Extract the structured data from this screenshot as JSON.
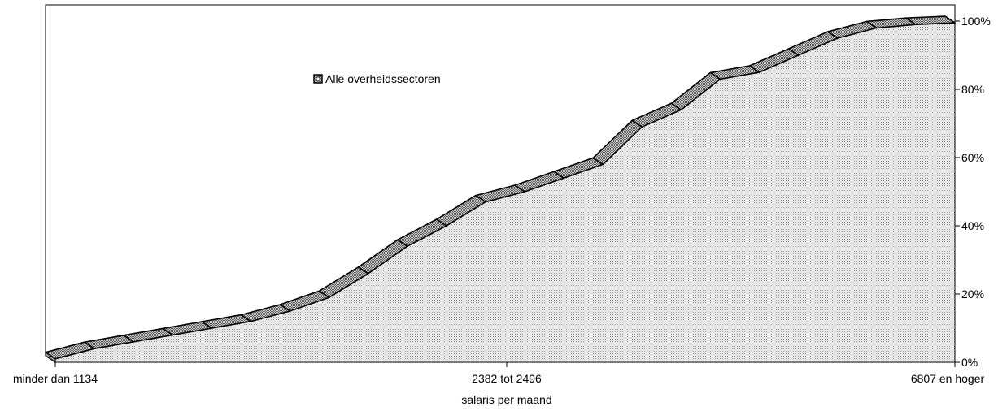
{
  "chart_data": {
    "type": "area",
    "title": "",
    "xlabel": "salaris per maand",
    "ylabel": "",
    "x_tick_labels": [
      "minder dan 1134",
      "2382 tot 2496",
      "6807 en hoger"
    ],
    "y_tick_labels": [
      "0%",
      "20%",
      "40%",
      "60%",
      "80%",
      "100%"
    ],
    "ylim": [
      0,
      100
    ],
    "grid": false,
    "legend_position": "top-center",
    "series": [
      {
        "name": "Alle overheidssectoren",
        "values": [
          1,
          4,
          6,
          8,
          10,
          12,
          15,
          19,
          26,
          34,
          40,
          47,
          50,
          54,
          58,
          69,
          74,
          83,
          85,
          90,
          95,
          98,
          99,
          99.5
        ]
      }
    ]
  }
}
